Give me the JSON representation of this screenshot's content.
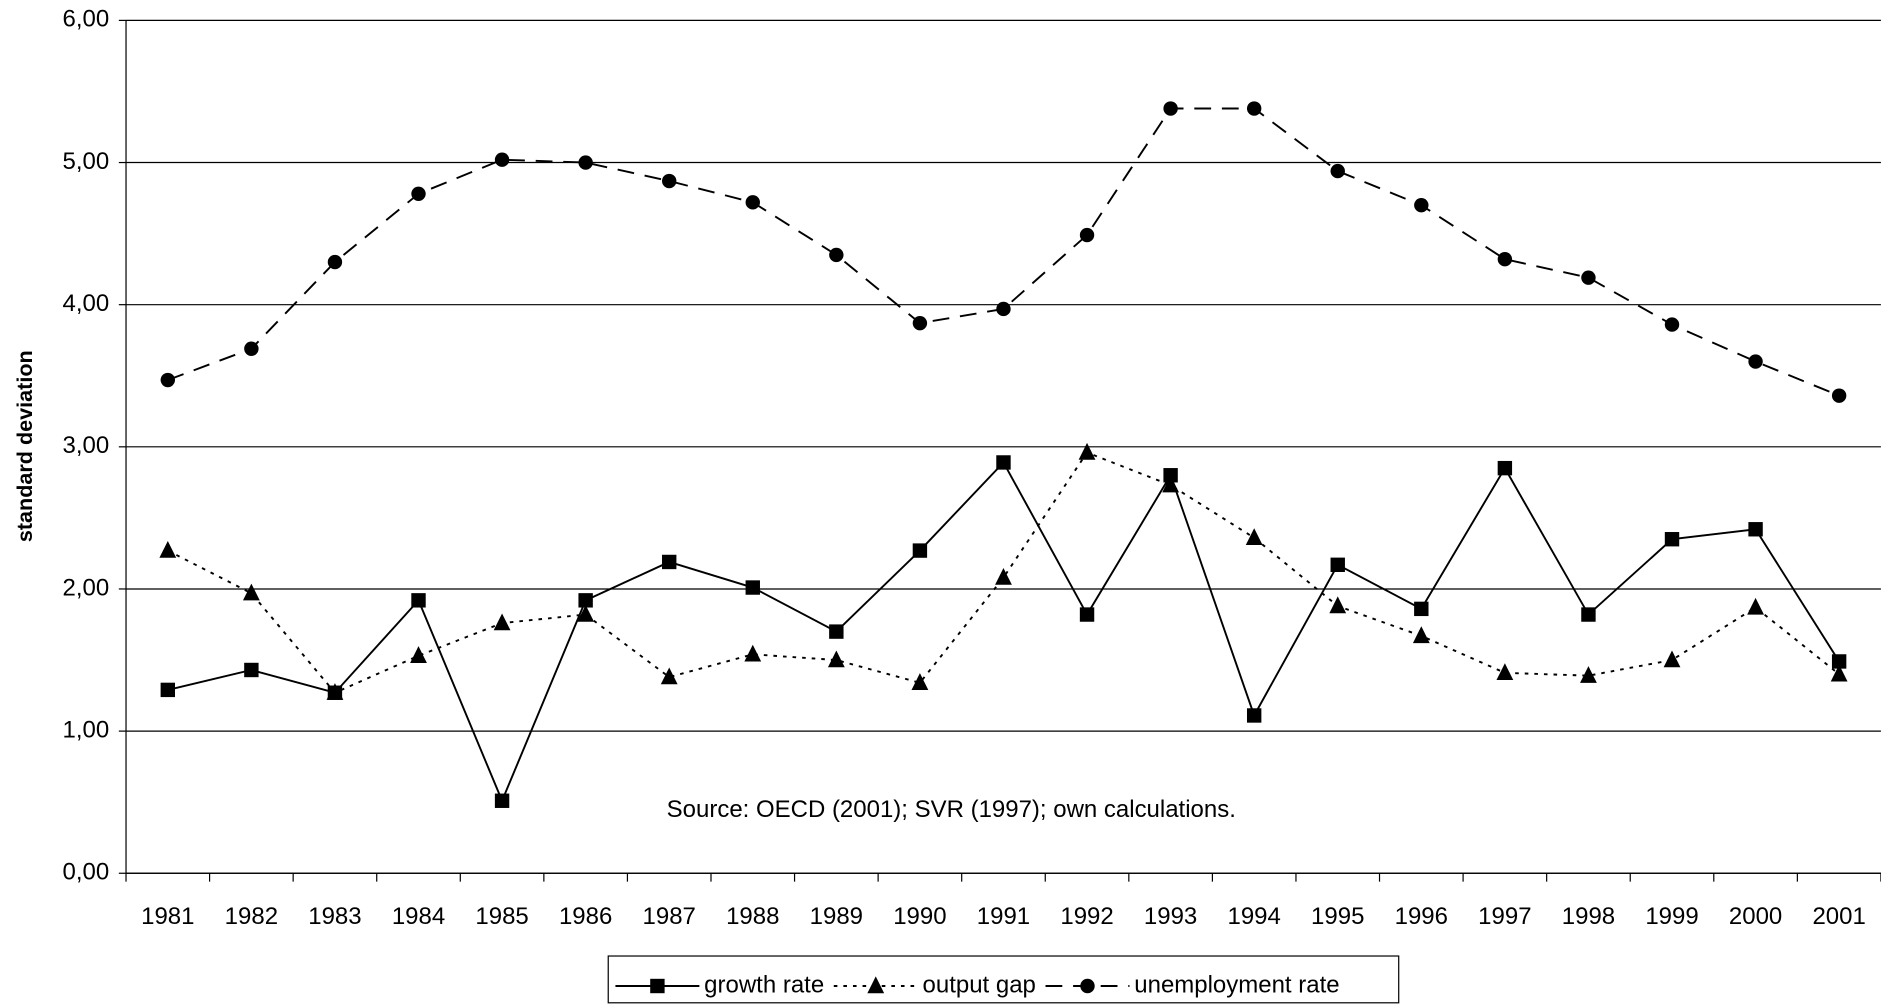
{
  "chart_data": {
    "type": "line",
    "y_label": "standard deviation",
    "annotation": "Source: OECD (2001); SVR (1997); own calculations.",
    "categories": [
      "1981",
      "1982",
      "1983",
      "1984",
      "1985",
      "1986",
      "1987",
      "1988",
      "1989",
      "1990",
      "1991",
      "1992",
      "1993",
      "1994",
      "1995",
      "1996",
      "1997",
      "1998",
      "1999",
      "2000",
      "2001"
    ],
    "ylim": [
      0,
      6
    ],
    "yticks": [
      {
        "value": 0,
        "label": "0,00"
      },
      {
        "value": 1,
        "label": "1,00"
      },
      {
        "value": 2,
        "label": "2,00"
      },
      {
        "value": 3,
        "label": "3,00"
      },
      {
        "value": 4,
        "label": "4,00"
      },
      {
        "value": 5,
        "label": "5,00"
      },
      {
        "value": 6,
        "label": "6,00"
      }
    ],
    "grid": true,
    "legend": "bottom",
    "series": [
      {
        "name": "growth rate",
        "color": "#000000",
        "marker": "square",
        "line": "solid",
        "values": [
          1.29,
          1.43,
          1.27,
          1.92,
          0.51,
          1.92,
          2.19,
          2.01,
          1.7,
          2.27,
          2.89,
          1.82,
          2.8,
          1.11,
          2.17,
          1.86,
          2.85,
          1.82,
          2.35,
          2.42,
          1.49
        ]
      },
      {
        "name": "output gap",
        "color": "#000000",
        "marker": "triangle",
        "line": "dotted",
        "values": [
          2.27,
          1.97,
          1.27,
          1.53,
          1.76,
          1.82,
          1.38,
          1.54,
          1.5,
          1.34,
          2.08,
          2.96,
          2.73,
          2.36,
          1.88,
          1.67,
          1.41,
          1.39,
          1.5,
          1.87,
          1.4
        ]
      },
      {
        "name": "unemployment rate",
        "color": "#000000",
        "marker": "circle",
        "line": "dashed",
        "values": [
          3.47,
          3.69,
          4.3,
          4.78,
          5.02,
          5.0,
          4.87,
          4.72,
          4.35,
          3.87,
          3.97,
          4.49,
          5.38,
          5.38,
          4.94,
          4.7,
          4.32,
          4.19,
          3.86,
          3.6,
          3.36
        ]
      }
    ]
  }
}
